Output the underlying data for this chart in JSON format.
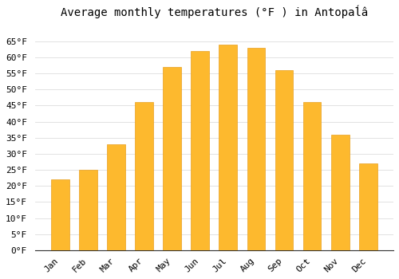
{
  "title": "Average monthly temperatures (°F ) in Antopaĺâ",
  "months": [
    "Jan",
    "Feb",
    "Mar",
    "Apr",
    "May",
    "Jun",
    "Jul",
    "Aug",
    "Sep",
    "Oct",
    "Nov",
    "Dec"
  ],
  "values": [
    22,
    25,
    33,
    46,
    57,
    62,
    64,
    63,
    56,
    46,
    36,
    27
  ],
  "bar_color": "#FDB92E",
  "bar_edge_color": "#E8A020",
  "background_color": "#FFFFFF",
  "plot_bg_color": "#FFFFFF",
  "grid_color": "#DDDDDD",
  "ylim": [
    0,
    70
  ],
  "yticks": [
    0,
    5,
    10,
    15,
    20,
    25,
    30,
    35,
    40,
    45,
    50,
    55,
    60,
    65
  ],
  "title_fontsize": 10,
  "tick_fontsize": 8,
  "font_family": "monospace",
  "bar_width": 0.65,
  "figsize": [
    5.0,
    3.5
  ],
  "dpi": 100
}
